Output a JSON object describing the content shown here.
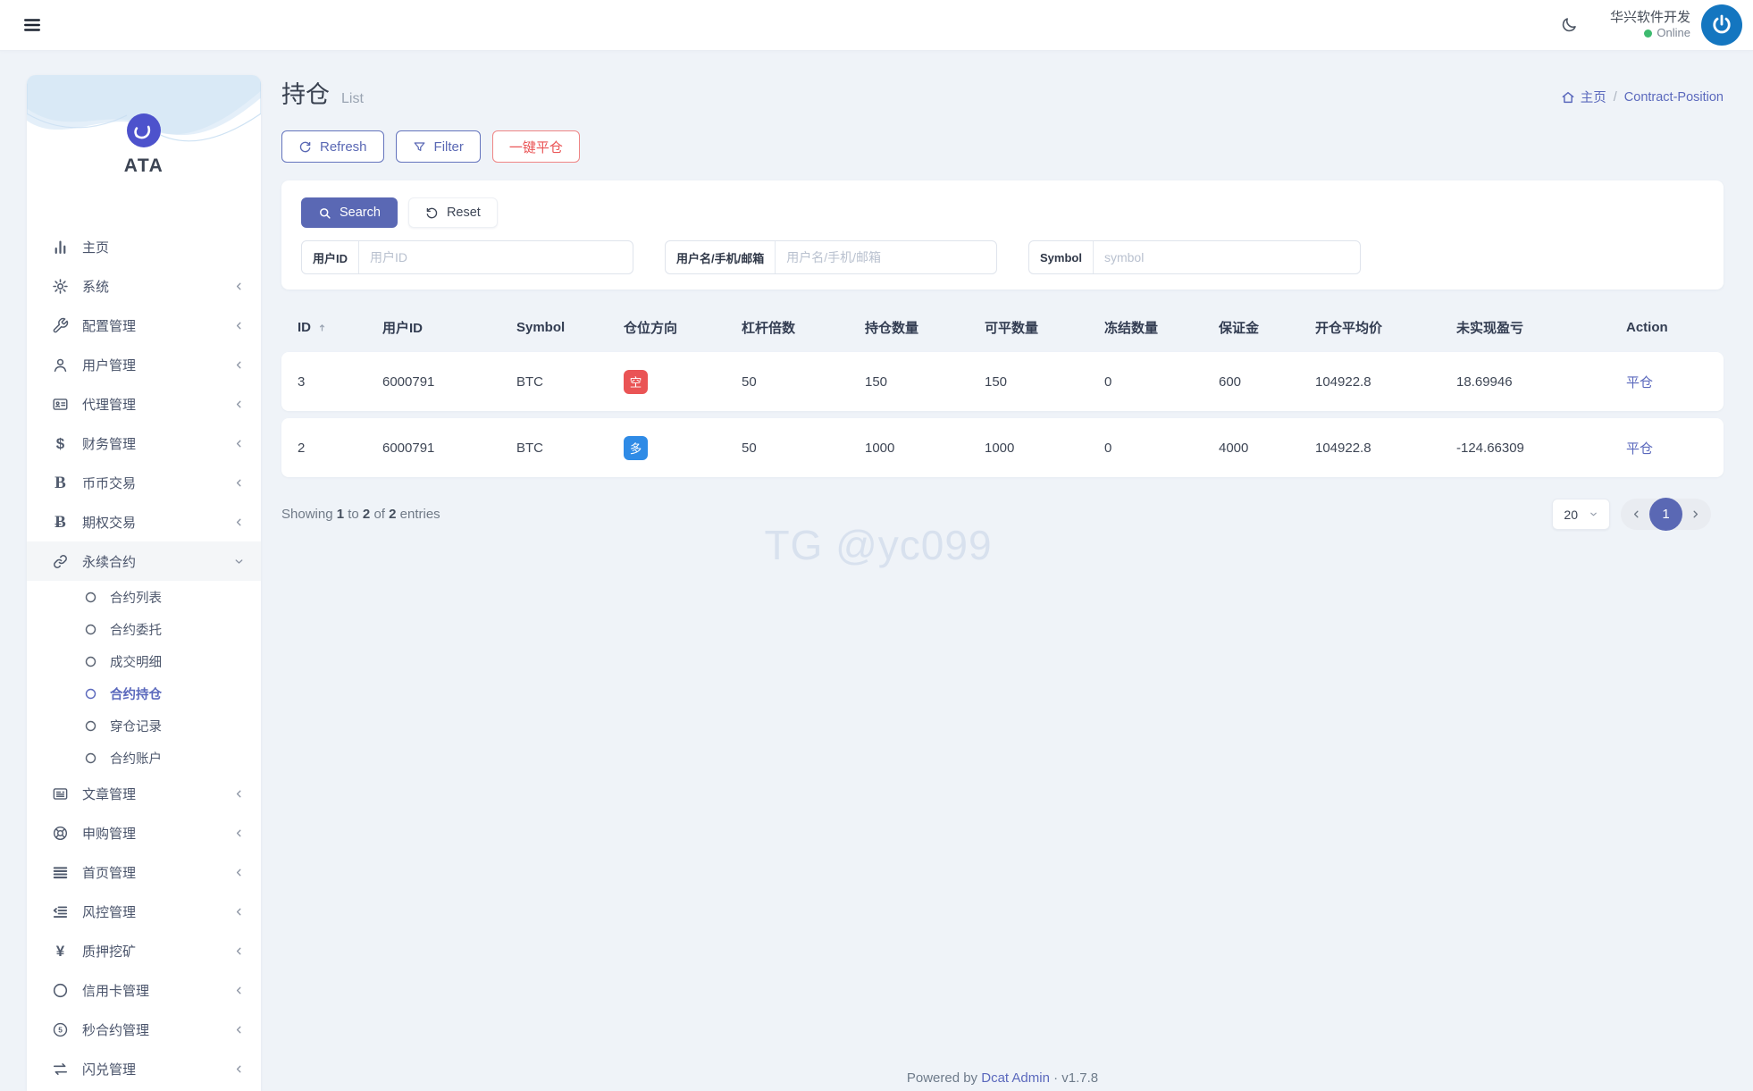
{
  "navbar": {
    "user_name": "华兴软件开发",
    "status": "Online"
  },
  "sidebar": {
    "brand": "ATA",
    "items": [
      {
        "label": "主页",
        "icon": "chart"
      },
      {
        "label": "系统",
        "icon": "gear"
      },
      {
        "label": "配置管理",
        "icon": "wrench"
      },
      {
        "label": "用户管理",
        "icon": "user"
      },
      {
        "label": "代理管理",
        "icon": "idcard"
      },
      {
        "label": "财务管理",
        "icon": "dollar"
      },
      {
        "label": "币币交易",
        "icon": "b"
      },
      {
        "label": "期权交易",
        "icon": "btc"
      },
      {
        "label": "永续合约",
        "icon": "link",
        "active": true,
        "expanded": true
      },
      {
        "label": "文章管理",
        "icon": "news"
      },
      {
        "label": "申购管理",
        "icon": "lifering"
      },
      {
        "label": "首页管理",
        "icon": "lines"
      },
      {
        "label": "风控管理",
        "icon": "outdent"
      },
      {
        "label": "质押挖矿",
        "icon": "yen"
      },
      {
        "label": "信用卡管理",
        "icon": "circle"
      },
      {
        "label": "秒合约管理",
        "icon": "sec5"
      },
      {
        "label": "闪兑管理",
        "icon": "exchange"
      }
    ],
    "submenu": [
      {
        "label": "合约列表"
      },
      {
        "label": "合约委托"
      },
      {
        "label": "成交明细"
      },
      {
        "label": "合约持仓",
        "active": true
      },
      {
        "label": "穿仓记录"
      },
      {
        "label": "合约账户"
      }
    ]
  },
  "page": {
    "title": "持仓",
    "subtitle": "List",
    "breadcrumb_home": "主页",
    "breadcrumb_sep": "/",
    "breadcrumb_current": "Contract-Position"
  },
  "toolbar": {
    "refresh": "Refresh",
    "filter": "Filter",
    "close_all": "一键平仓"
  },
  "search": {
    "search_btn": "Search",
    "reset_btn": "Reset",
    "fields": [
      {
        "label": "用户ID",
        "placeholder": "用户ID"
      },
      {
        "label": "用户名/手机/邮箱",
        "placeholder": "用户名/手机/邮箱"
      },
      {
        "label": "Symbol",
        "placeholder": "symbol"
      }
    ]
  },
  "table": {
    "columns": [
      "ID",
      "用户ID",
      "Symbol",
      "仓位方向",
      "杠杆倍数",
      "持仓数量",
      "可平数量",
      "冻结数量",
      "保证金",
      "开仓平均价",
      "未实现盈亏",
      "Action"
    ],
    "rows": [
      {
        "id": "3",
        "user_id": "6000791",
        "symbol": "BTC",
        "direction": "空",
        "direction_type": "short",
        "leverage": "50",
        "position": "150",
        "closable": "150",
        "frozen": "0",
        "margin": "600",
        "avg_price": "104922.8",
        "unrealized_pnl": "18.69946",
        "action": "平仓"
      },
      {
        "id": "2",
        "user_id": "6000791",
        "symbol": "BTC",
        "direction": "多",
        "direction_type": "long",
        "leverage": "50",
        "position": "1000",
        "closable": "1000",
        "frozen": "0",
        "margin": "4000",
        "avg_price": "104922.8",
        "unrealized_pnl": "-124.66309",
        "action": "平仓"
      }
    ]
  },
  "pagination": {
    "showing_word": "Showing",
    "from": "1",
    "to_word": "to",
    "to": "2",
    "of_word": "of",
    "total": "2",
    "entries_word": "entries",
    "per_page": "20",
    "current_page": "1"
  },
  "watermark": "TG @yc099",
  "footer": {
    "powered_by": "Powered by",
    "brand": "Dcat Admin",
    "separator": "·",
    "version": "v1.7.8"
  },
  "colors": {
    "primary": "#5a68b4",
    "danger": "#ea5455",
    "badge_long": "#2f8be6",
    "badge_short": "#ea5455",
    "online": "#3dba6f",
    "watermark_text": "#d8e1ee",
    "avatar_bg": "#1476c0",
    "logo_bg": "#4d52cc",
    "page_bg": "#eff3f8"
  }
}
